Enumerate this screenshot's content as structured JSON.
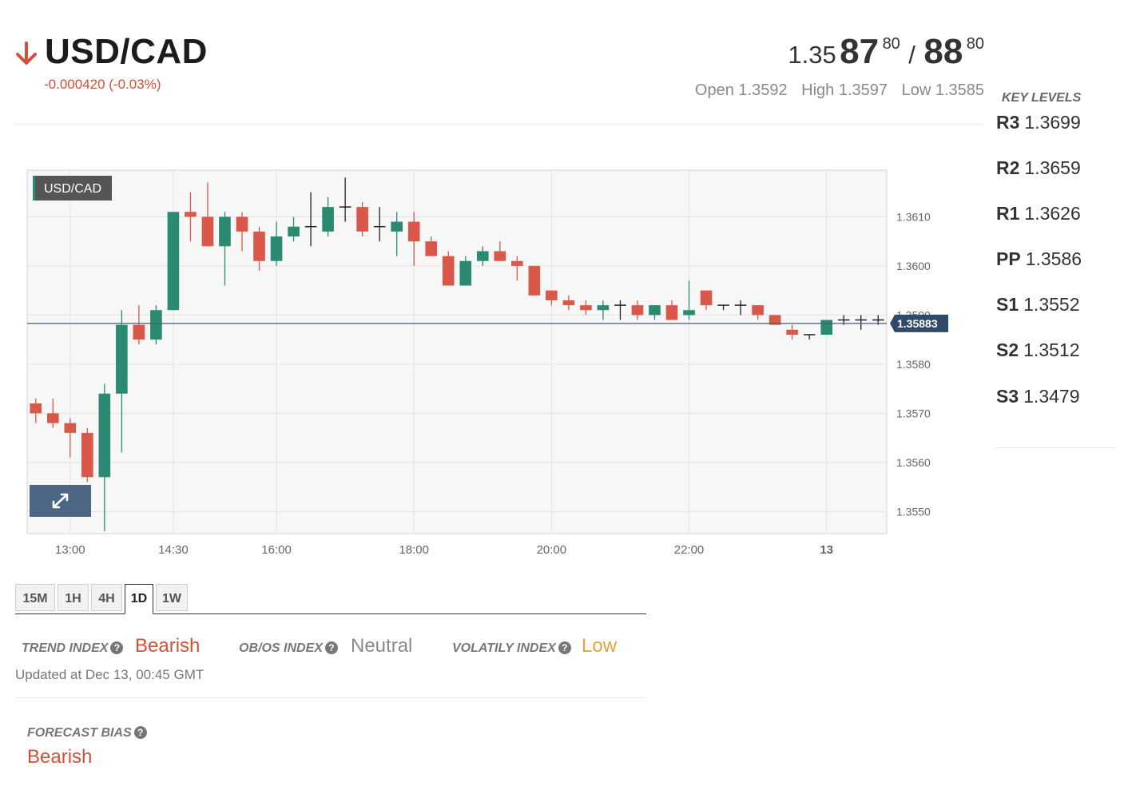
{
  "header": {
    "pair": "USD/CAD",
    "direction_icon": "arrow-down-icon",
    "change": "-0.000420 (-0.03%)",
    "bid": {
      "base": "1.35",
      "pips": "87",
      "fraction": "80"
    },
    "separator": "/",
    "ask": {
      "pips": "88",
      "fraction": "80"
    },
    "open": "Open 1.3592",
    "high": "High 1.3597",
    "low": "Low 1.3585"
  },
  "key_levels": {
    "title": "KEY LEVELS",
    "levels": [
      {
        "name": "R3",
        "value": "1.3699"
      },
      {
        "name": "R2",
        "value": "1.3659"
      },
      {
        "name": "R1",
        "value": "1.3626"
      },
      {
        "name": "PP",
        "value": "1.3586"
      },
      {
        "name": "S1",
        "value": "1.3552"
      },
      {
        "name": "S2",
        "value": "1.3512"
      },
      {
        "name": "S3",
        "value": "1.3479"
      }
    ]
  },
  "chart_data": {
    "type": "candlestick",
    "symbol_label": "USD/CAD",
    "current_price": 1.35883,
    "current_price_label": "1.35883",
    "y_ticks": [
      1.355,
      1.356,
      1.357,
      1.358,
      1.359,
      1.36,
      1.361
    ],
    "y_tick_labels": [
      "1.3550",
      "1.3560",
      "1.3570",
      "1.3580",
      "1.3590",
      "1.3600",
      "1.3610"
    ],
    "ylim": [
      1.35455,
      1.36195
    ],
    "x_tick_labels": [
      "13:00",
      "14:30",
      "16:00",
      "18:00",
      "20:00",
      "22:00",
      "13"
    ],
    "x_tick_index": [
      2,
      8,
      14,
      22,
      30,
      38,
      46
    ],
    "grid": true,
    "colors": {
      "up": "#2a8a72",
      "down": "#d9584a",
      "neutral": "#222222",
      "price_line": "#4a5a72",
      "price_tag": "#2f4a6b"
    },
    "candles": [
      [
        1.3572,
        1.3573,
        1.3568,
        1.357
      ],
      [
        1.357,
        1.3573,
        1.3567,
        1.3568
      ],
      [
        1.3568,
        1.3569,
        1.3561,
        1.3566
      ],
      [
        1.3566,
        1.3567,
        1.3556,
        1.3557
      ],
      [
        1.3557,
        1.3576,
        1.3546,
        1.3574
      ],
      [
        1.3574,
        1.3591,
        1.3562,
        1.3588
      ],
      [
        1.3588,
        1.3592,
        1.3584,
        1.3585
      ],
      [
        1.3585,
        1.3592,
        1.3584,
        1.3591
      ],
      [
        1.3591,
        1.3611,
        1.3591,
        1.3611
      ],
      [
        1.3611,
        1.3615,
        1.3605,
        1.361
      ],
      [
        1.361,
        1.3617,
        1.3604,
        1.3604
      ],
      [
        1.3604,
        1.3611,
        1.3596,
        1.361
      ],
      [
        1.361,
        1.3611,
        1.3603,
        1.3607
      ],
      [
        1.3607,
        1.3608,
        1.3599,
        1.3601
      ],
      [
        1.3601,
        1.3609,
        1.36,
        1.3606
      ],
      [
        1.3606,
        1.361,
        1.3605,
        1.3608
      ],
      [
        1.3608,
        1.3615,
        1.3604,
        1.3608
      ],
      [
        1.3607,
        1.3614,
        1.3606,
        1.3612
      ],
      [
        1.3612,
        1.3618,
        1.3609,
        1.3612
      ],
      [
        1.3612,
        1.3613,
        1.3606,
        1.3607
      ],
      [
        1.3608,
        1.3612,
        1.3605,
        1.3608
      ],
      [
        1.3607,
        1.3611,
        1.3602,
        1.3609
      ],
      [
        1.3609,
        1.3611,
        1.36,
        1.3605
      ],
      [
        1.3605,
        1.3606,
        1.3602,
        1.3602
      ],
      [
        1.3602,
        1.3603,
        1.3596,
        1.3596
      ],
      [
        1.3596,
        1.3602,
        1.3596,
        1.3601
      ],
      [
        1.3601,
        1.3604,
        1.36,
        1.3603
      ],
      [
        1.3603,
        1.3605,
        1.3601,
        1.3601
      ],
      [
        1.3601,
        1.3602,
        1.3597,
        1.36
      ],
      [
        1.36,
        1.36,
        1.3594,
        1.3594
      ],
      [
        1.3595,
        1.3595,
        1.3592,
        1.3593
      ],
      [
        1.3593,
        1.3594,
        1.3591,
        1.3592
      ],
      [
        1.3592,
        1.3593,
        1.359,
        1.3591
      ],
      [
        1.3591,
        1.3593,
        1.3589,
        1.3592
      ],
      [
        1.3592,
        1.3593,
        1.3589,
        1.3592
      ],
      [
        1.3592,
        1.3593,
        1.3589,
        1.359
      ],
      [
        1.359,
        1.3592,
        1.3589,
        1.3592
      ],
      [
        1.3592,
        1.3593,
        1.3589,
        1.3589
      ],
      [
        1.359,
        1.3597,
        1.3589,
        1.3591
      ],
      [
        1.3595,
        1.3595,
        1.3591,
        1.3592
      ],
      [
        1.3592,
        1.3592,
        1.3591,
        1.3592
      ],
      [
        1.3592,
        1.3593,
        1.359,
        1.3592
      ],
      [
        1.3592,
        1.3592,
        1.3589,
        1.359
      ],
      [
        1.359,
        1.359,
        1.3588,
        1.3588
      ],
      [
        1.3587,
        1.3588,
        1.3585,
        1.3586
      ],
      [
        1.3586,
        1.3586,
        1.3585,
        1.3586
      ],
      [
        1.3586,
        1.3589,
        1.3586,
        1.3589
      ],
      [
        1.3589,
        1.359,
        1.3588,
        1.3589
      ],
      [
        1.3589,
        1.359,
        1.3587,
        1.3589
      ],
      [
        1.3589,
        1.359,
        1.3588,
        1.3589
      ]
    ]
  },
  "expand_icon": "expand-arrows-icon",
  "tabs": [
    {
      "label": "15M",
      "active": false
    },
    {
      "label": "1H",
      "active": false
    },
    {
      "label": "4H",
      "active": false
    },
    {
      "label": "1D",
      "active": true
    },
    {
      "label": "1W",
      "active": false
    }
  ],
  "indices": {
    "trend": {
      "label": "TREND INDEX",
      "value": "Bearish",
      "color": "#d0503a"
    },
    "obos": {
      "label": "OB/OS INDEX",
      "value": "Neutral",
      "color": "#8a8a8a"
    },
    "volatility": {
      "label": "VOLATILY INDEX",
      "value": "Low",
      "color": "#e8a33b"
    },
    "help_icon": "question-circle-icon",
    "help_glyph": "?",
    "updated": "Updated at Dec 13, 00:45 GMT"
  },
  "forecast": {
    "label": "FORECAST BIAS",
    "value": "Bearish"
  }
}
